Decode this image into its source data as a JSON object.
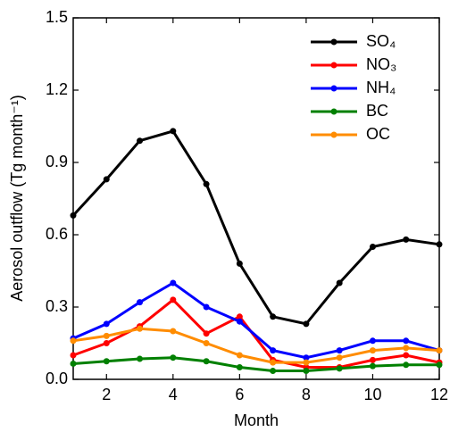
{
  "chart_data": {
    "type": "line",
    "x_label": "Month",
    "y_label": "Aerosol outflow (Tg month⁻¹)",
    "x": [
      1,
      2,
      3,
      4,
      5,
      6,
      7,
      8,
      9,
      10,
      11,
      12
    ],
    "xlim": [
      1,
      12
    ],
    "xticks": [
      2,
      4,
      6,
      8,
      10,
      12
    ],
    "ylim": [
      0,
      1.5
    ],
    "yticks": [
      {
        "value": 0,
        "label": "0.0"
      },
      0.3,
      0.6,
      0.9,
      1.2,
      1.5
    ],
    "legend": "upper right",
    "series": [
      {
        "name": "SO₄",
        "color": "#000000",
        "values": [
          0.68,
          0.83,
          0.99,
          1.03,
          0.81,
          0.48,
          0.26,
          0.23,
          0.4,
          0.55,
          0.58,
          0.56
        ]
      },
      {
        "name": "NO₃",
        "color": "#ff0000",
        "values": [
          0.1,
          0.15,
          0.22,
          0.33,
          0.19,
          0.26,
          0.08,
          0.05,
          0.05,
          0.08,
          0.1,
          0.07
        ]
      },
      {
        "name": "NH₄",
        "color": "#0000ff",
        "values": [
          0.17,
          0.23,
          0.32,
          0.4,
          0.3,
          0.24,
          0.12,
          0.09,
          0.12,
          0.16,
          0.16,
          0.12
        ]
      },
      {
        "name": "BC",
        "color": "#008000",
        "values": [
          0.065,
          0.075,
          0.085,
          0.09,
          0.075,
          0.05,
          0.035,
          0.035,
          0.045,
          0.055,
          0.06,
          0.06
        ]
      },
      {
        "name": "OC",
        "color": "#ff8c00",
        "values": [
          0.16,
          0.18,
          0.21,
          0.2,
          0.15,
          0.1,
          0.07,
          0.07,
          0.09,
          0.12,
          0.13,
          0.12
        ]
      }
    ]
  }
}
